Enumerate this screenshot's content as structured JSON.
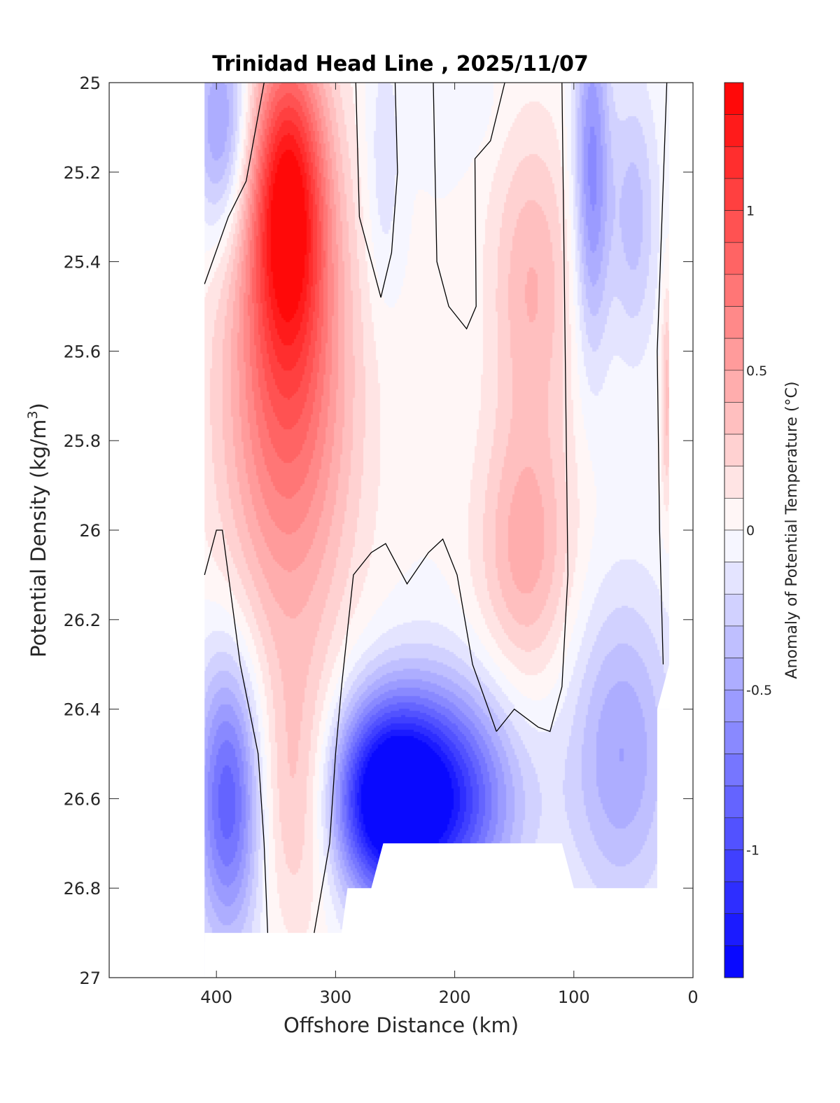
{
  "chart_data": {
    "type": "heatmap",
    "subtype": "filled-contour section",
    "title": "Trinidad Head Line , 2025/11/07",
    "xlabel": "Offshore Distance (km)",
    "ylabel_main": "Potential Density (kg/m",
    "ylabel_sup": "3",
    "ylabel_close": ")",
    "xlim": [
      490,
      0
    ],
    "ylim": [
      25,
      27
    ],
    "x_reversed": true,
    "y_reversed": true,
    "xticks": [
      400,
      300,
      200,
      100,
      0
    ],
    "xtick_labels": [
      "400",
      "300",
      "200",
      "100",
      "0"
    ],
    "yticks": [
      25,
      25.2,
      25.4,
      25.6,
      25.8,
      26,
      26.2,
      26.4,
      26.6,
      26.8,
      27
    ],
    "ytick_labels": [
      "25",
      "25.2",
      "25.4",
      "25.6",
      "25.8",
      "26",
      "26.2",
      "26.4",
      "26.6",
      "26.8",
      "27"
    ],
    "colorbar": {
      "label": "Anomaly of Potential Temperature (°C)",
      "range": [
        -1.4,
        1.4
      ],
      "step": 0.1,
      "ticks": [
        1,
        0.5,
        0,
        -0.5,
        -1
      ],
      "tick_labels": [
        "1",
        "0.5",
        "0",
        "-0.5",
        "-1"
      ],
      "color_min": "#0000ff",
      "color_zero": "#ffffff",
      "color_max": "#ff0000"
    },
    "data_extent": {
      "x_min": 20,
      "x_max": 410
    },
    "fields": [
      {
        "name": "cold core nearshore 400 km",
        "x": 390,
        "y": 26.6,
        "value": -0.9,
        "rx": 28,
        "ry": 0.32
      },
      {
        "name": "warm core 340 km shallow",
        "x": 340,
        "y": 25.25,
        "value": 1.1,
        "rx": 32,
        "ry": 0.35
      },
      {
        "name": "warm core 340 km mid",
        "x": 340,
        "y": 25.7,
        "value": 0.8,
        "rx": 55,
        "ry": 0.55
      },
      {
        "name": "warm tongue 330 km deep",
        "x": 330,
        "y": 26.6,
        "value": 0.35,
        "rx": 35,
        "ry": 0.3
      },
      {
        "name": "cold core 260 km",
        "x": 260,
        "y": 26.6,
        "value": -1.25,
        "rx": 45,
        "ry": 0.22
      },
      {
        "name": "cold core 210 km",
        "x": 210,
        "y": 26.6,
        "value": -1.1,
        "rx": 60,
        "ry": 0.25
      },
      {
        "name": "weak cold 260 km surface",
        "x": 260,
        "y": 25.2,
        "value": -0.2,
        "rx": 15,
        "ry": 0.3
      },
      {
        "name": "weak cold 200 km surface",
        "x": 200,
        "y": 25.05,
        "value": -0.1,
        "rx": 35,
        "ry": 0.12
      },
      {
        "name": "warm lens 140 km upper",
        "x": 135,
        "y": 25.45,
        "value": 0.4,
        "rx": 35,
        "ry": 0.35
      },
      {
        "name": "warm lens 140 km lower",
        "x": 140,
        "y": 26.05,
        "value": 0.45,
        "rx": 40,
        "ry": 0.3
      },
      {
        "name": "cold band 85 km",
        "x": 85,
        "y": 25.2,
        "value": -0.65,
        "rx": 15,
        "ry": 0.4
      },
      {
        "name": "cold band 50 km",
        "x": 50,
        "y": 25.3,
        "value": -0.35,
        "rx": 20,
        "ry": 0.3
      },
      {
        "name": "cold nearshore deep",
        "x": 60,
        "y": 26.5,
        "value": -0.5,
        "rx": 45,
        "ry": 0.35
      },
      {
        "name": "warm coastal strip",
        "x": 22,
        "y": 25.7,
        "value": 0.35,
        "rx": 5,
        "ry": 0.25
      },
      {
        "name": "cold 390 km surface",
        "x": 395,
        "y": 25.1,
        "value": -0.6,
        "rx": 25,
        "ry": 0.25
      }
    ],
    "zero_contours": [
      {
        "name": "zero-contour-west",
        "points": [
          [
            410,
            25.45
          ],
          [
            390,
            25.3
          ],
          [
            375,
            25.22
          ],
          [
            360,
            25.0
          ]
        ]
      },
      {
        "name": "zero-contour-300km",
        "points": [
          [
            410,
            26.1
          ],
          [
            400,
            26.0
          ],
          [
            395,
            26.0
          ],
          [
            390,
            26.1
          ],
          [
            380,
            26.3
          ],
          [
            365,
            26.5
          ],
          [
            360,
            26.7
          ],
          [
            357,
            26.9
          ]
        ]
      },
      {
        "name": "zero-contour-west-of-deep-cold",
        "points": [
          [
            318,
            26.9
          ],
          [
            305,
            26.7
          ],
          [
            300,
            26.5
          ],
          [
            295,
            26.35
          ],
          [
            285,
            26.1
          ],
          [
            270,
            26.05
          ],
          [
            258,
            26.03
          ],
          [
            240,
            26.12
          ],
          [
            222,
            26.05
          ],
          [
            210,
            26.02
          ],
          [
            198,
            26.1
          ],
          [
            185,
            26.3
          ],
          [
            165,
            26.45
          ]
        ]
      },
      {
        "name": "zero-contour-east-loop",
        "points": [
          [
            165,
            26.45
          ],
          [
            150,
            26.4
          ],
          [
            130,
            26.44
          ],
          [
            120,
            26.45
          ],
          [
            110,
            26.35
          ],
          [
            105,
            26.1
          ],
          [
            110,
            25.0
          ]
        ]
      },
      {
        "name": "zero-contour-280km",
        "points": [
          [
            283,
            25.0
          ],
          [
            280,
            25.3
          ],
          [
            262,
            25.48
          ],
          [
            253,
            25.38
          ],
          [
            248,
            25.2
          ],
          [
            250,
            25.0
          ]
        ]
      },
      {
        "name": "zero-contour-200km",
        "points": [
          [
            218,
            25.0
          ],
          [
            215,
            25.4
          ],
          [
            205,
            25.5
          ],
          [
            190,
            25.55
          ],
          [
            182,
            25.5
          ],
          [
            183,
            25.17
          ],
          [
            170,
            25.13
          ],
          [
            158,
            25.0
          ]
        ]
      },
      {
        "name": "zero-contour-east",
        "points": [
          [
            25,
            26.3
          ],
          [
            28,
            26.0
          ],
          [
            30,
            25.6
          ],
          [
            22,
            25.0
          ]
        ]
      }
    ],
    "no_data_regions": [
      {
        "name": "no-data-west",
        "polygon": [
          [
            490,
            25
          ],
          [
            410,
            25
          ],
          [
            410,
            27
          ],
          [
            490,
            27
          ]
        ]
      },
      {
        "name": "no-data-bottom",
        "polygon": [
          [
            410,
            26.9
          ],
          [
            410,
            27
          ],
          [
            0,
            27
          ],
          [
            0,
            26.4
          ],
          [
            30,
            26.4
          ],
          [
            30,
            26.8
          ],
          [
            100,
            26.8
          ],
          [
            110,
            26.7
          ],
          [
            260,
            26.7
          ],
          [
            270,
            26.8
          ],
          [
            290,
            26.8
          ],
          [
            295,
            26.9
          ]
        ]
      },
      {
        "name": "no-data-east",
        "polygon": [
          [
            20,
            25
          ],
          [
            0,
            25
          ],
          [
            0,
            26.4
          ],
          [
            30,
            26.4
          ],
          [
            20,
            26.3
          ]
        ]
      }
    ]
  }
}
